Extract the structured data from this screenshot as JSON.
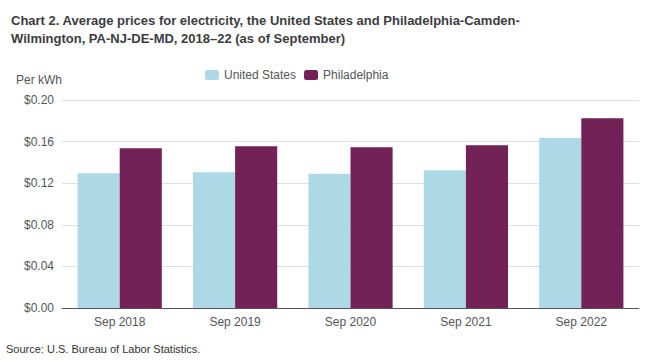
{
  "chart_data": {
    "type": "bar",
    "title": "Chart 2. Average prices for electricity, the United States and Philadelphia-Camden-\nWilmington, PA-NJ-DE-MD, 2018–22 (as of September)",
    "ylabel": "Per kWh",
    "source": "Source: U.S. Bureau of Labor Statistics.",
    "categories": [
      "Sep 2018",
      "Sep 2019",
      "Sep 2020",
      "Sep 2021",
      "Sep 2022"
    ],
    "series": [
      {
        "name": "United States",
        "color": "#ADD8E6",
        "values": [
          0.1295,
          0.1305,
          0.129,
          0.1325,
          0.1635
        ]
      },
      {
        "name": "Philadelphia",
        "color": "#722257",
        "values": [
          0.1535,
          0.1555,
          0.1545,
          0.1565,
          0.1825
        ]
      }
    ],
    "ylim": [
      0,
      0.2
    ],
    "yticks": [
      {
        "value": 0.0,
        "label": "$0.00"
      },
      {
        "value": 0.04,
        "label": "$0.04"
      },
      {
        "value": 0.08,
        "label": "$0.08"
      },
      {
        "value": 0.12,
        "label": "$0.12"
      },
      {
        "value": 0.16,
        "label": "$0.16"
      },
      {
        "value": 0.2,
        "label": "$0.20"
      }
    ],
    "grid": true,
    "legend": "top"
  }
}
